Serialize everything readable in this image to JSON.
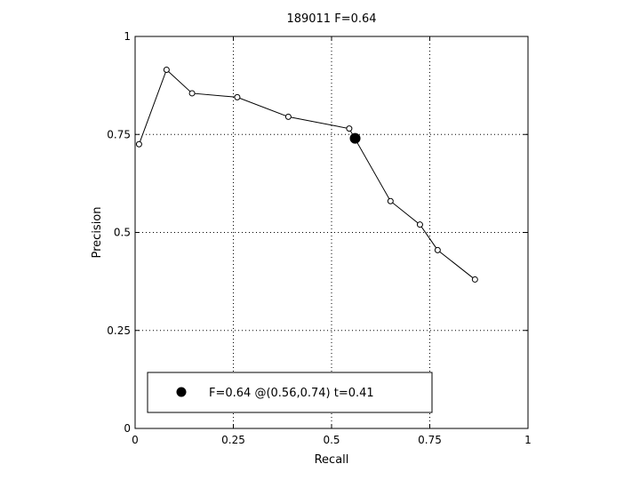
{
  "chart_data": {
    "type": "line",
    "title": "189011 F=0.64",
    "xlabel": "Recall",
    "ylabel": "Precision",
    "xlim": [
      0,
      1
    ],
    "ylim": [
      0,
      1
    ],
    "xticks": [
      0,
      0.25,
      0.5,
      0.75,
      1
    ],
    "yticks": [
      0,
      0.25,
      0.5,
      0.75,
      1
    ],
    "xtick_labels": [
      "0",
      "0.25",
      "0.5",
      "0.75",
      "1"
    ],
    "ytick_labels": [
      "0",
      "0.25",
      "0.5",
      "0.75",
      "1"
    ],
    "grid": true,
    "series": [
      {
        "x": [
          0.01,
          0.08,
          0.145,
          0.26,
          0.39,
          0.545,
          0.65,
          0.725,
          0.77,
          0.865
        ],
        "y": [
          0.725,
          0.915,
          0.855,
          0.845,
          0.795,
          0.765,
          0.58,
          0.52,
          0.455,
          0.38
        ]
      }
    ],
    "highlight_point": {
      "x": 0.56,
      "y": 0.74
    },
    "legend": {
      "placement": "bottom-left",
      "entries": [
        "F=0.64 @(0.56,0.74) t=0.41"
      ]
    }
  }
}
